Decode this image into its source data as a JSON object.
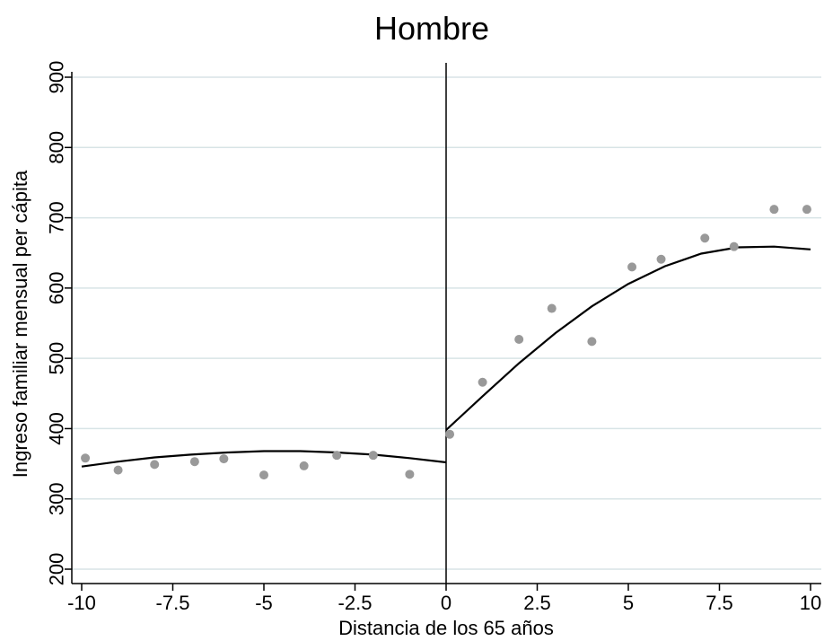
{
  "chart_data": {
    "type": "scatter",
    "title": "Hombre",
    "xlabel": "Distancia de los 65 años",
    "ylabel": "Ingreso familiar mensual per cápita",
    "xlim": [
      -10,
      10
    ],
    "ylim": [
      200,
      900
    ],
    "xticks": [
      -10,
      -7.5,
      -5,
      -2.5,
      0,
      2.5,
      5,
      7.5,
      10
    ],
    "xtick_labels": [
      "-10",
      "-7.5",
      "-5",
      "-2.5",
      "0",
      "2.5",
      "5",
      "7.5",
      "10"
    ],
    "yticks": [
      200,
      300,
      400,
      500,
      600,
      700,
      800,
      900
    ],
    "ytick_labels": [
      "200",
      "300",
      "400",
      "500",
      "600",
      "700",
      "800",
      "900"
    ],
    "grid": true,
    "cutoff_x": 0,
    "colors": {
      "points": "#999999",
      "fit_line": "#000000",
      "grid": "#d8e4e6",
      "axis": "#000000"
    },
    "points": [
      {
        "x": -9.9,
        "y": 358
      },
      {
        "x": -9,
        "y": 341
      },
      {
        "x": -8,
        "y": 349
      },
      {
        "x": -6.9,
        "y": 353
      },
      {
        "x": -6.1,
        "y": 357
      },
      {
        "x": -5,
        "y": 334
      },
      {
        "x": -3.9,
        "y": 347
      },
      {
        "x": -3,
        "y": 362
      },
      {
        "x": -2,
        "y": 362
      },
      {
        "x": -1,
        "y": 335
      },
      {
        "x": 0.1,
        "y": 392
      },
      {
        "x": 1,
        "y": 466
      },
      {
        "x": 2,
        "y": 527
      },
      {
        "x": 2.9,
        "y": 571
      },
      {
        "x": 4,
        "y": 524
      },
      {
        "x": 5.1,
        "y": 630
      },
      {
        "x": 5.9,
        "y": 641
      },
      {
        "x": 7.1,
        "y": 671
      },
      {
        "x": 7.9,
        "y": 659
      },
      {
        "x": 9,
        "y": 712
      },
      {
        "x": 9.9,
        "y": 712
      }
    ],
    "fit_left": [
      {
        "x": -10,
        "y": 346
      },
      {
        "x": -9,
        "y": 353
      },
      {
        "x": -8,
        "y": 359
      },
      {
        "x": -7,
        "y": 363
      },
      {
        "x": -6,
        "y": 366
      },
      {
        "x": -5,
        "y": 368
      },
      {
        "x": -4,
        "y": 368
      },
      {
        "x": -3,
        "y": 366
      },
      {
        "x": -2,
        "y": 363
      },
      {
        "x": -1,
        "y": 358
      },
      {
        "x": 0,
        "y": 352
      }
    ],
    "fit_right": [
      {
        "x": 0,
        "y": 398
      },
      {
        "x": 1,
        "y": 446
      },
      {
        "x": 2,
        "y": 493
      },
      {
        "x": 3,
        "y": 536
      },
      {
        "x": 4,
        "y": 574
      },
      {
        "x": 5,
        "y": 606
      },
      {
        "x": 6,
        "y": 631
      },
      {
        "x": 7,
        "y": 649
      },
      {
        "x": 8,
        "y": 658
      },
      {
        "x": 9,
        "y": 659
      },
      {
        "x": 10,
        "y": 655
      }
    ]
  }
}
